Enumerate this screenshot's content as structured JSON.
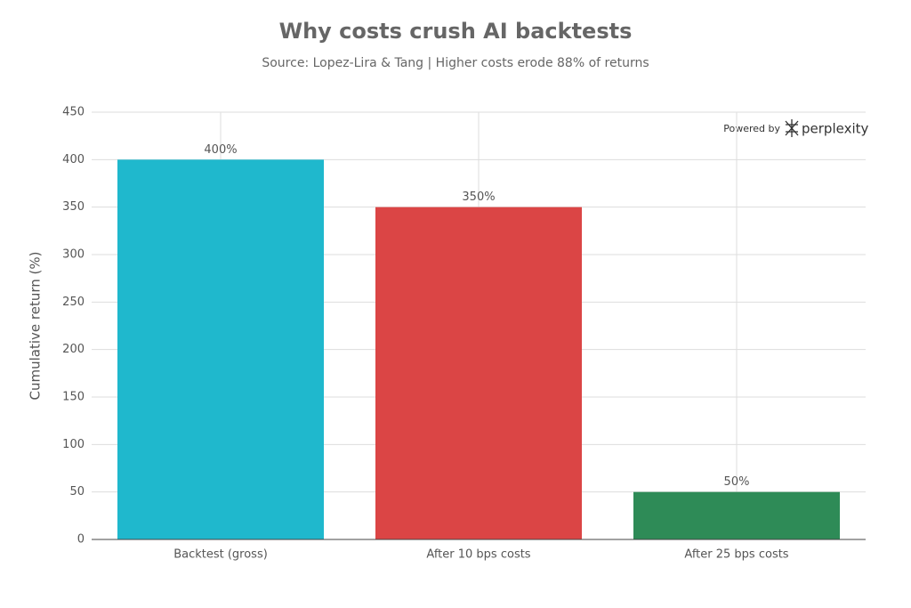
{
  "chart_data": {
    "type": "bar",
    "title": "Why costs crush AI backtests",
    "subtitle": "Source: Lopez-Lira & Tang | Higher costs erode 88% of returns",
    "y_label": "Cumulative return (%)",
    "categories": [
      "Backtest (gross)",
      "After 10 bps costs",
      "After 25 bps costs"
    ],
    "values": [
      400,
      350,
      50
    ],
    "value_labels": [
      "400%",
      "350%",
      "50%"
    ],
    "colors": [
      "#1fb8cd",
      "#db4545",
      "#2e8b57"
    ],
    "ylim": [
      0,
      450
    ],
    "yticks": [
      0,
      50,
      100,
      150,
      200,
      250,
      300,
      350,
      400,
      450
    ],
    "grid": true,
    "watermark": {
      "prefix": "Powered by",
      "brand": "perplexity"
    }
  }
}
